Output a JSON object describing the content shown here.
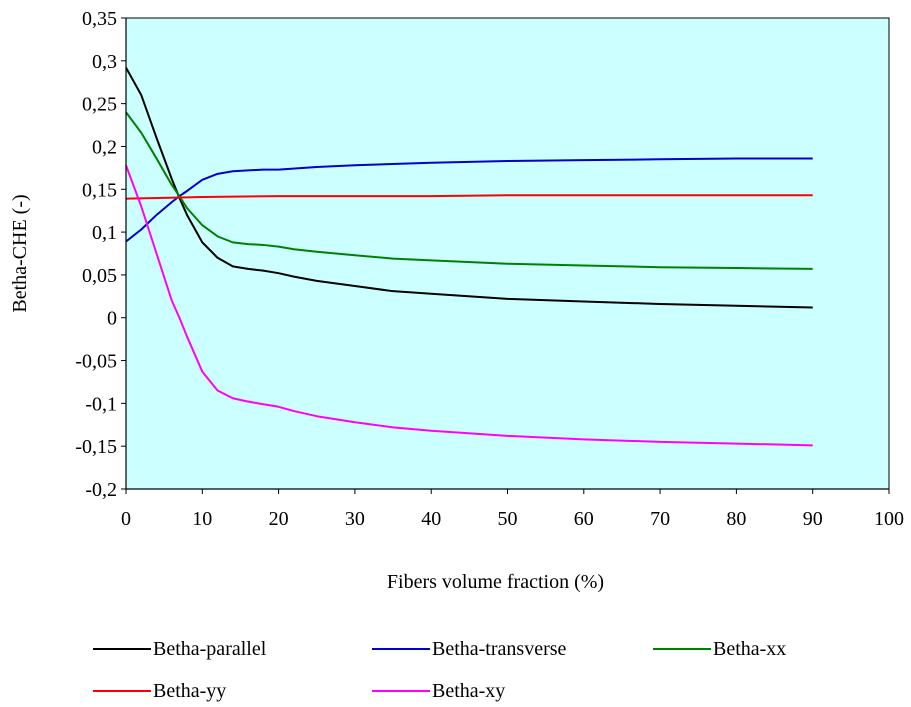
{
  "chart_data": {
    "type": "line",
    "title": "",
    "xlabel": "Fibers volume fraction (%)",
    "ylabel": "Betha-CHE (-)",
    "xlim": [
      0,
      100
    ],
    "ylim": [
      -0.2,
      0.35
    ],
    "xticks": [
      0,
      10,
      20,
      30,
      40,
      50,
      60,
      70,
      80,
      90,
      100
    ],
    "yticks": [
      -0.2,
      -0.15,
      -0.1,
      -0.05,
      0,
      0.05,
      0.1,
      0.15,
      0.2,
      0.25,
      0.3,
      0.35
    ],
    "xtick_labels": [
      "0",
      "10",
      "20",
      "30",
      "40",
      "50",
      "60",
      "70",
      "80",
      "90",
      "100"
    ],
    "ytick_labels": [
      "-0,2",
      "-0,15",
      "-0,1",
      "-0,05",
      "0",
      "0,05",
      "0,1",
      "0,15",
      "0,2",
      "0,25",
      "0,3",
      "0,35"
    ],
    "grid": false,
    "plot_background": "#ccffff",
    "legend_position": "bottom",
    "series": [
      {
        "name": "Betha-parallel",
        "color": "#000000",
        "x": [
          0,
          2,
          4,
          6,
          7,
          8,
          10,
          12,
          14,
          16,
          18,
          20,
          22,
          25,
          30,
          35,
          40,
          50,
          60,
          70,
          80,
          90
        ],
        "y": [
          0.292,
          0.26,
          0.21,
          0.162,
          0.14,
          0.12,
          0.088,
          0.07,
          0.06,
          0.057,
          0.055,
          0.052,
          0.048,
          0.043,
          0.037,
          0.031,
          0.028,
          0.022,
          0.019,
          0.016,
          0.014,
          0.012
        ]
      },
      {
        "name": "Betha-transverse",
        "color": "#0000cc",
        "x": [
          0,
          2,
          4,
          6,
          7,
          8,
          10,
          12,
          14,
          16,
          18,
          20,
          25,
          30,
          40,
          50,
          60,
          70,
          80,
          90
        ],
        "y": [
          0.089,
          0.103,
          0.12,
          0.135,
          0.142,
          0.148,
          0.161,
          0.168,
          0.171,
          0.172,
          0.173,
          0.173,
          0.176,
          0.178,
          0.181,
          0.183,
          0.184,
          0.185,
          0.186,
          0.186
        ]
      },
      {
        "name": "Betha-xx",
        "color": "#008000",
        "x": [
          0,
          2,
          4,
          6,
          7,
          8,
          10,
          12,
          14,
          16,
          18,
          20,
          22,
          25,
          30,
          35,
          40,
          50,
          60,
          70,
          80,
          90
        ],
        "y": [
          0.24,
          0.216,
          0.186,
          0.155,
          0.142,
          0.128,
          0.108,
          0.095,
          0.088,
          0.086,
          0.085,
          0.083,
          0.08,
          0.077,
          0.073,
          0.069,
          0.067,
          0.063,
          0.061,
          0.059,
          0.058,
          0.057
        ]
      },
      {
        "name": "Betha-yy",
        "color": "#ff0000",
        "x": [
          0,
          5,
          10,
          20,
          30,
          40,
          50,
          60,
          70,
          80,
          90
        ],
        "y": [
          0.139,
          0.14,
          0.141,
          0.142,
          0.142,
          0.142,
          0.143,
          0.143,
          0.143,
          0.143,
          0.143
        ]
      },
      {
        "name": "Betha-xy",
        "color": "#ff00ff",
        "x": [
          0,
          2,
          4,
          6,
          7,
          8,
          10,
          12,
          14,
          16,
          18,
          20,
          22,
          25,
          30,
          35,
          40,
          50,
          60,
          70,
          80,
          90
        ],
        "y": [
          0.178,
          0.13,
          0.075,
          0.02,
          0.0,
          -0.022,
          -0.063,
          -0.085,
          -0.094,
          -0.098,
          -0.101,
          -0.104,
          -0.109,
          -0.115,
          -0.122,
          -0.128,
          -0.132,
          -0.138,
          -0.142,
          -0.145,
          -0.147,
          -0.149
        ]
      }
    ]
  }
}
